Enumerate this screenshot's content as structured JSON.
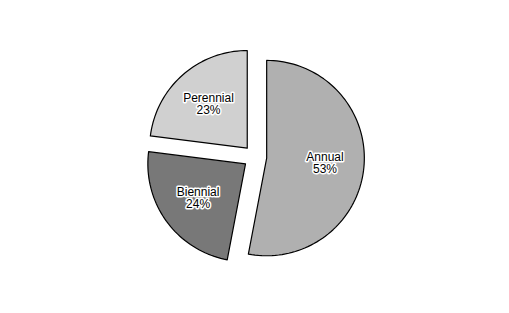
{
  "chart_data": {
    "type": "pie",
    "categories": [
      "Annual",
      "Biennial",
      "Perennial"
    ],
    "values": [
      53,
      24,
      23
    ],
    "value_labels": [
      "53%",
      "24%",
      "23%"
    ],
    "colors": [
      "#b0b0b0",
      "#787878",
      "#d0d0d0"
    ]
  }
}
